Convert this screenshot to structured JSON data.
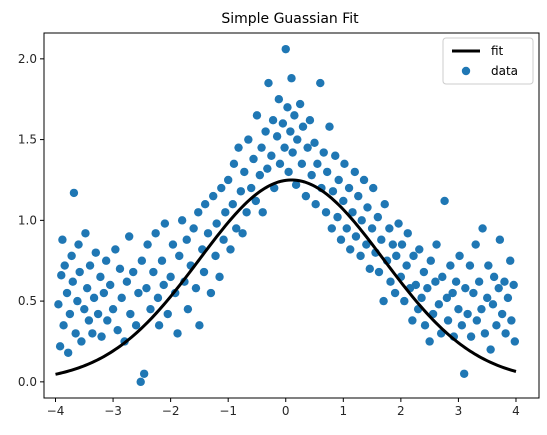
{
  "chart_data": {
    "type": "scatter",
    "title": "Simple Guassian Fit",
    "xlabel": "",
    "ylabel": "",
    "xlim": [
      -4.2,
      4.4
    ],
    "ylim": [
      -0.1,
      2.16
    ],
    "xticks": [
      -4,
      -3,
      -2,
      -1,
      0,
      1,
      2,
      3,
      4
    ],
    "yticks": [
      0.0,
      0.5,
      1.0,
      1.5,
      2.0
    ],
    "xtick_labels": [
      "−4",
      "−3",
      "−2",
      "−1",
      "0",
      "1",
      "2",
      "3",
      "4"
    ],
    "ytick_labels": [
      "0.0",
      "0.5",
      "1.0",
      "1.5",
      "2.0"
    ],
    "grid": false,
    "legend": "top-right",
    "series": [
      {
        "name": "fit",
        "kind": "line",
        "color": "#000000",
        "model": "gaussian",
        "amplitude": 1.25,
        "mean": 0.1,
        "sigma": 1.6,
        "x_range": [
          -4,
          4
        ]
      },
      {
        "name": "data",
        "kind": "scatter",
        "color": "#1f77b4",
        "points": [
          [
            -3.95,
            0.48
          ],
          [
            -3.92,
            0.22
          ],
          [
            -3.9,
            0.66
          ],
          [
            -3.88,
            0.88
          ],
          [
            -3.86,
            0.35
          ],
          [
            -3.84,
            0.72
          ],
          [
            -3.8,
            0.55
          ],
          [
            -3.78,
            0.18
          ],
          [
            -3.75,
            0.42
          ],
          [
            -3.72,
            0.78
          ],
          [
            -3.7,
            0.62
          ],
          [
            -3.68,
            1.17
          ],
          [
            -3.65,
            0.3
          ],
          [
            -3.62,
            0.5
          ],
          [
            -3.6,
            0.85
          ],
          [
            -3.58,
            0.68
          ],
          [
            -3.55,
            0.25
          ],
          [
            -3.5,
            0.45
          ],
          [
            -3.48,
            0.92
          ],
          [
            -3.45,
            0.58
          ],
          [
            -3.42,
            0.38
          ],
          [
            -3.4,
            0.72
          ],
          [
            -3.36,
            0.3
          ],
          [
            -3.33,
            0.52
          ],
          [
            -3.3,
            0.8
          ],
          [
            -3.26,
            0.42
          ],
          [
            -3.22,
            0.65
          ],
          [
            -3.2,
            0.28
          ],
          [
            -3.16,
            0.55
          ],
          [
            -3.12,
            0.75
          ],
          [
            -3.1,
            0.38
          ],
          [
            -3.05,
            0.6
          ],
          [
            -3.0,
            0.45
          ],
          [
            -2.96,
            0.82
          ],
          [
            -2.92,
            0.32
          ],
          [
            -2.88,
            0.7
          ],
          [
            -2.85,
            0.52
          ],
          [
            -2.8,
            0.25
          ],
          [
            -2.76,
            0.62
          ],
          [
            -2.72,
            0.9
          ],
          [
            -2.7,
            0.42
          ],
          [
            -2.65,
            0.68
          ],
          [
            -2.6,
            0.35
          ],
          [
            -2.56,
            0.55
          ],
          [
            -2.52,
            0.0
          ],
          [
            -2.5,
            0.75
          ],
          [
            -2.46,
            0.05
          ],
          [
            -2.42,
            0.58
          ],
          [
            -2.4,
            0.85
          ],
          [
            -2.35,
            0.45
          ],
          [
            -2.3,
            0.68
          ],
          [
            -2.26,
            0.92
          ],
          [
            -2.22,
            0.52
          ],
          [
            -2.2,
            0.35
          ],
          [
            -2.15,
            0.75
          ],
          [
            -2.12,
            0.6
          ],
          [
            -2.1,
            0.98
          ],
          [
            -2.05,
            0.42
          ],
          [
            -2.0,
            0.65
          ],
          [
            -1.96,
            0.85
          ],
          [
            -1.92,
            0.55
          ],
          [
            -1.88,
            0.3
          ],
          [
            -1.85,
            0.78
          ],
          [
            -1.8,
            1.0
          ],
          [
            -1.76,
            0.62
          ],
          [
            -1.72,
            0.88
          ],
          [
            -1.7,
            0.45
          ],
          [
            -1.65,
            0.72
          ],
          [
            -1.6,
            0.95
          ],
          [
            -1.56,
            0.58
          ],
          [
            -1.52,
            1.05
          ],
          [
            -1.5,
            0.35
          ],
          [
            -1.45,
            0.82
          ],
          [
            -1.42,
            0.68
          ],
          [
            -1.4,
            1.1
          ],
          [
            -1.35,
            0.92
          ],
          [
            -1.3,
            0.55
          ],
          [
            -1.26,
            1.15
          ],
          [
            -1.22,
            0.78
          ],
          [
            -1.2,
            0.98
          ],
          [
            -1.15,
            0.65
          ],
          [
            -1.12,
            1.2
          ],
          [
            -1.08,
            0.88
          ],
          [
            -1.05,
            1.05
          ],
          [
            -1.0,
            1.25
          ],
          [
            -0.96,
            0.82
          ],
          [
            -0.92,
            1.1
          ],
          [
            -0.9,
            1.35
          ],
          [
            -0.86,
            0.95
          ],
          [
            -0.82,
            1.45
          ],
          [
            -0.78,
            1.18
          ],
          [
            -0.75,
            0.92
          ],
          [
            -0.72,
            1.3
          ],
          [
            -0.68,
            1.05
          ],
          [
            -0.65,
            1.5
          ],
          [
            -0.6,
            1.2
          ],
          [
            -0.56,
            1.38
          ],
          [
            -0.52,
            1.12
          ],
          [
            -0.5,
            1.65
          ],
          [
            -0.45,
            1.28
          ],
          [
            -0.42,
            1.45
          ],
          [
            -0.4,
            1.05
          ],
          [
            -0.35,
            1.55
          ],
          [
            -0.32,
            1.32
          ],
          [
            -0.3,
            1.85
          ],
          [
            -0.25,
            1.4
          ],
          [
            -0.22,
            1.62
          ],
          [
            -0.2,
            1.2
          ],
          [
            -0.15,
            1.52
          ],
          [
            -0.12,
            1.75
          ],
          [
            -0.1,
            1.35
          ],
          [
            -0.05,
            1.6
          ],
          [
            -0.02,
            1.45
          ],
          [
            0.0,
            2.06
          ],
          [
            0.03,
            1.7
          ],
          [
            0.05,
            1.3
          ],
          [
            0.08,
            1.55
          ],
          [
            0.1,
            1.88
          ],
          [
            0.12,
            1.42
          ],
          [
            0.15,
            1.65
          ],
          [
            0.18,
            1.22
          ],
          [
            0.2,
            1.5
          ],
          [
            0.25,
            1.72
          ],
          [
            0.28,
            1.35
          ],
          [
            0.3,
            1.58
          ],
          [
            0.35,
            1.15
          ],
          [
            0.38,
            1.45
          ],
          [
            0.42,
            1.62
          ],
          [
            0.45,
            1.28
          ],
          [
            0.5,
            1.48
          ],
          [
            0.52,
            1.1
          ],
          [
            0.55,
            1.35
          ],
          [
            0.6,
            1.85
          ],
          [
            0.62,
            1.2
          ],
          [
            0.66,
            1.42
          ],
          [
            0.7,
            1.05
          ],
          [
            0.72,
            1.3
          ],
          [
            0.76,
            1.58
          ],
          [
            0.8,
            0.95
          ],
          [
            0.82,
            1.18
          ],
          [
            0.86,
            1.4
          ],
          [
            0.9,
            1.02
          ],
          [
            0.92,
            1.25
          ],
          [
            0.96,
            0.88
          ],
          [
            1.0,
            1.12
          ],
          [
            1.02,
            1.35
          ],
          [
            1.06,
            0.95
          ],
          [
            1.1,
            1.2
          ],
          [
            1.12,
            0.82
          ],
          [
            1.16,
            1.05
          ],
          [
            1.2,
            1.3
          ],
          [
            1.22,
            0.9
          ],
          [
            1.26,
            1.15
          ],
          [
            1.3,
            0.78
          ],
          [
            1.32,
            1.0
          ],
          [
            1.36,
            1.25
          ],
          [
            1.4,
            0.85
          ],
          [
            1.42,
            1.08
          ],
          [
            1.46,
            0.7
          ],
          [
            1.5,
            0.95
          ],
          [
            1.52,
            1.2
          ],
          [
            1.56,
            0.8
          ],
          [
            1.6,
            1.02
          ],
          [
            1.62,
            0.68
          ],
          [
            1.66,
            0.88
          ],
          [
            1.7,
            0.5
          ],
          [
            1.72,
            1.1
          ],
          [
            1.76,
            0.75
          ],
          [
            1.8,
            0.95
          ],
          [
            1.82,
            0.62
          ],
          [
            1.86,
            0.85
          ],
          [
            1.9,
            0.55
          ],
          [
            1.92,
            0.78
          ],
          [
            1.96,
            0.98
          ],
          [
            2.0,
            0.65
          ],
          [
            2.02,
            0.85
          ],
          [
            2.06,
            0.5
          ],
          [
            2.1,
            0.72
          ],
          [
            2.12,
            0.92
          ],
          [
            2.16,
            0.58
          ],
          [
            2.2,
            0.38
          ],
          [
            2.22,
            0.78
          ],
          [
            2.26,
            0.6
          ],
          [
            2.3,
            0.45
          ],
          [
            2.32,
            0.82
          ],
          [
            2.36,
            0.52
          ],
          [
            2.4,
            0.68
          ],
          [
            2.42,
            0.35
          ],
          [
            2.46,
            0.58
          ],
          [
            2.5,
            0.25
          ],
          [
            2.52,
            0.75
          ],
          [
            2.56,
            0.42
          ],
          [
            2.6,
            0.62
          ],
          [
            2.62,
            0.85
          ],
          [
            2.66,
            0.48
          ],
          [
            2.7,
            0.3
          ],
          [
            2.72,
            0.65
          ],
          [
            2.76,
            1.12
          ],
          [
            2.8,
            0.52
          ],
          [
            2.82,
            0.38
          ],
          [
            2.86,
            0.72
          ],
          [
            2.9,
            0.55
          ],
          [
            2.92,
            0.28
          ],
          [
            2.96,
            0.62
          ],
          [
            3.0,
            0.45
          ],
          [
            3.02,
            0.78
          ],
          [
            3.06,
            0.35
          ],
          [
            3.1,
            0.05
          ],
          [
            3.12,
            0.58
          ],
          [
            3.16,
            0.42
          ],
          [
            3.2,
            0.72
          ],
          [
            3.22,
            0.28
          ],
          [
            3.26,
            0.55
          ],
          [
            3.3,
            0.85
          ],
          [
            3.32,
            0.38
          ],
          [
            3.36,
            0.62
          ],
          [
            3.4,
            0.45
          ],
          [
            3.42,
            0.95
          ],
          [
            3.46,
            0.3
          ],
          [
            3.5,
            0.52
          ],
          [
            3.52,
            0.72
          ],
          [
            3.56,
            0.2
          ],
          [
            3.6,
            0.48
          ],
          [
            3.62,
            0.65
          ],
          [
            3.66,
            0.35
          ],
          [
            3.7,
            0.58
          ],
          [
            3.72,
            0.88
          ],
          [
            3.76,
            0.42
          ],
          [
            3.8,
            0.62
          ],
          [
            3.82,
            0.3
          ],
          [
            3.86,
            0.52
          ],
          [
            3.9,
            0.75
          ],
          [
            3.92,
            0.38
          ],
          [
            3.96,
            0.6
          ],
          [
            3.98,
            0.25
          ]
        ]
      }
    ]
  }
}
